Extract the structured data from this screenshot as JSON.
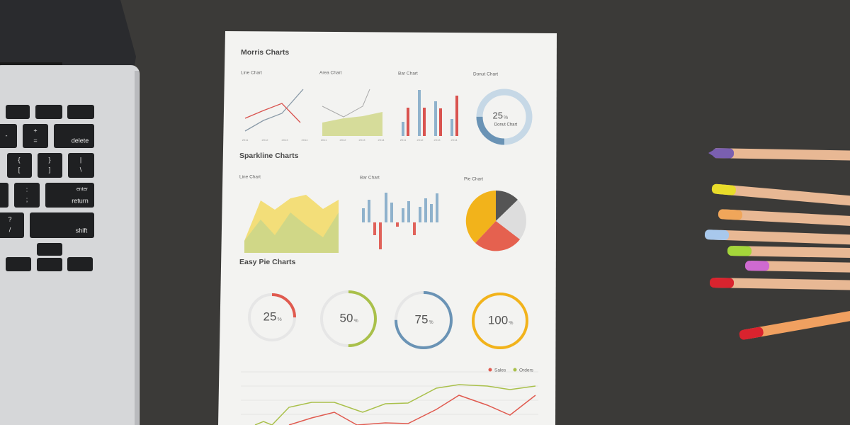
{
  "laptop": {
    "keys": [
      "-",
      "+",
      "=",
      "delete",
      "{",
      "[",
      "}",
      "]",
      "|",
      "\\",
      ":",
      ";",
      "enter",
      "return",
      "?",
      "/",
      "shift"
    ]
  },
  "paper": {
    "morris": {
      "title": "Morris Charts",
      "charts": [
        "Line Chart",
        "Area Chart",
        "Bar Chart",
        "Donut Chart"
      ],
      "years": [
        "2011",
        "2012",
        "2013",
        "2014"
      ],
      "donut": {
        "value": 25,
        "unit": "%",
        "label": "Donut Chart"
      }
    },
    "sparkline": {
      "title": "Sparkline Charts",
      "charts": [
        "Line Chart",
        "Bar Chart",
        "Pie Chart"
      ]
    },
    "easy_pie": {
      "title": "Easy Pie Charts",
      "items": [
        {
          "value": 25,
          "unit": "%",
          "color": "#e05a4f"
        },
        {
          "value": 50,
          "unit": "%",
          "color": "#a9c04a"
        },
        {
          "value": 75,
          "unit": "%",
          "color": "#6a93b5"
        },
        {
          "value": 100,
          "unit": "%",
          "color": "#f2b31b"
        }
      ]
    },
    "legend": [
      {
        "name": "Sales",
        "color": "#e05a4f"
      },
      {
        "name": "Orders",
        "color": "#a9c04a"
      }
    ]
  }
}
